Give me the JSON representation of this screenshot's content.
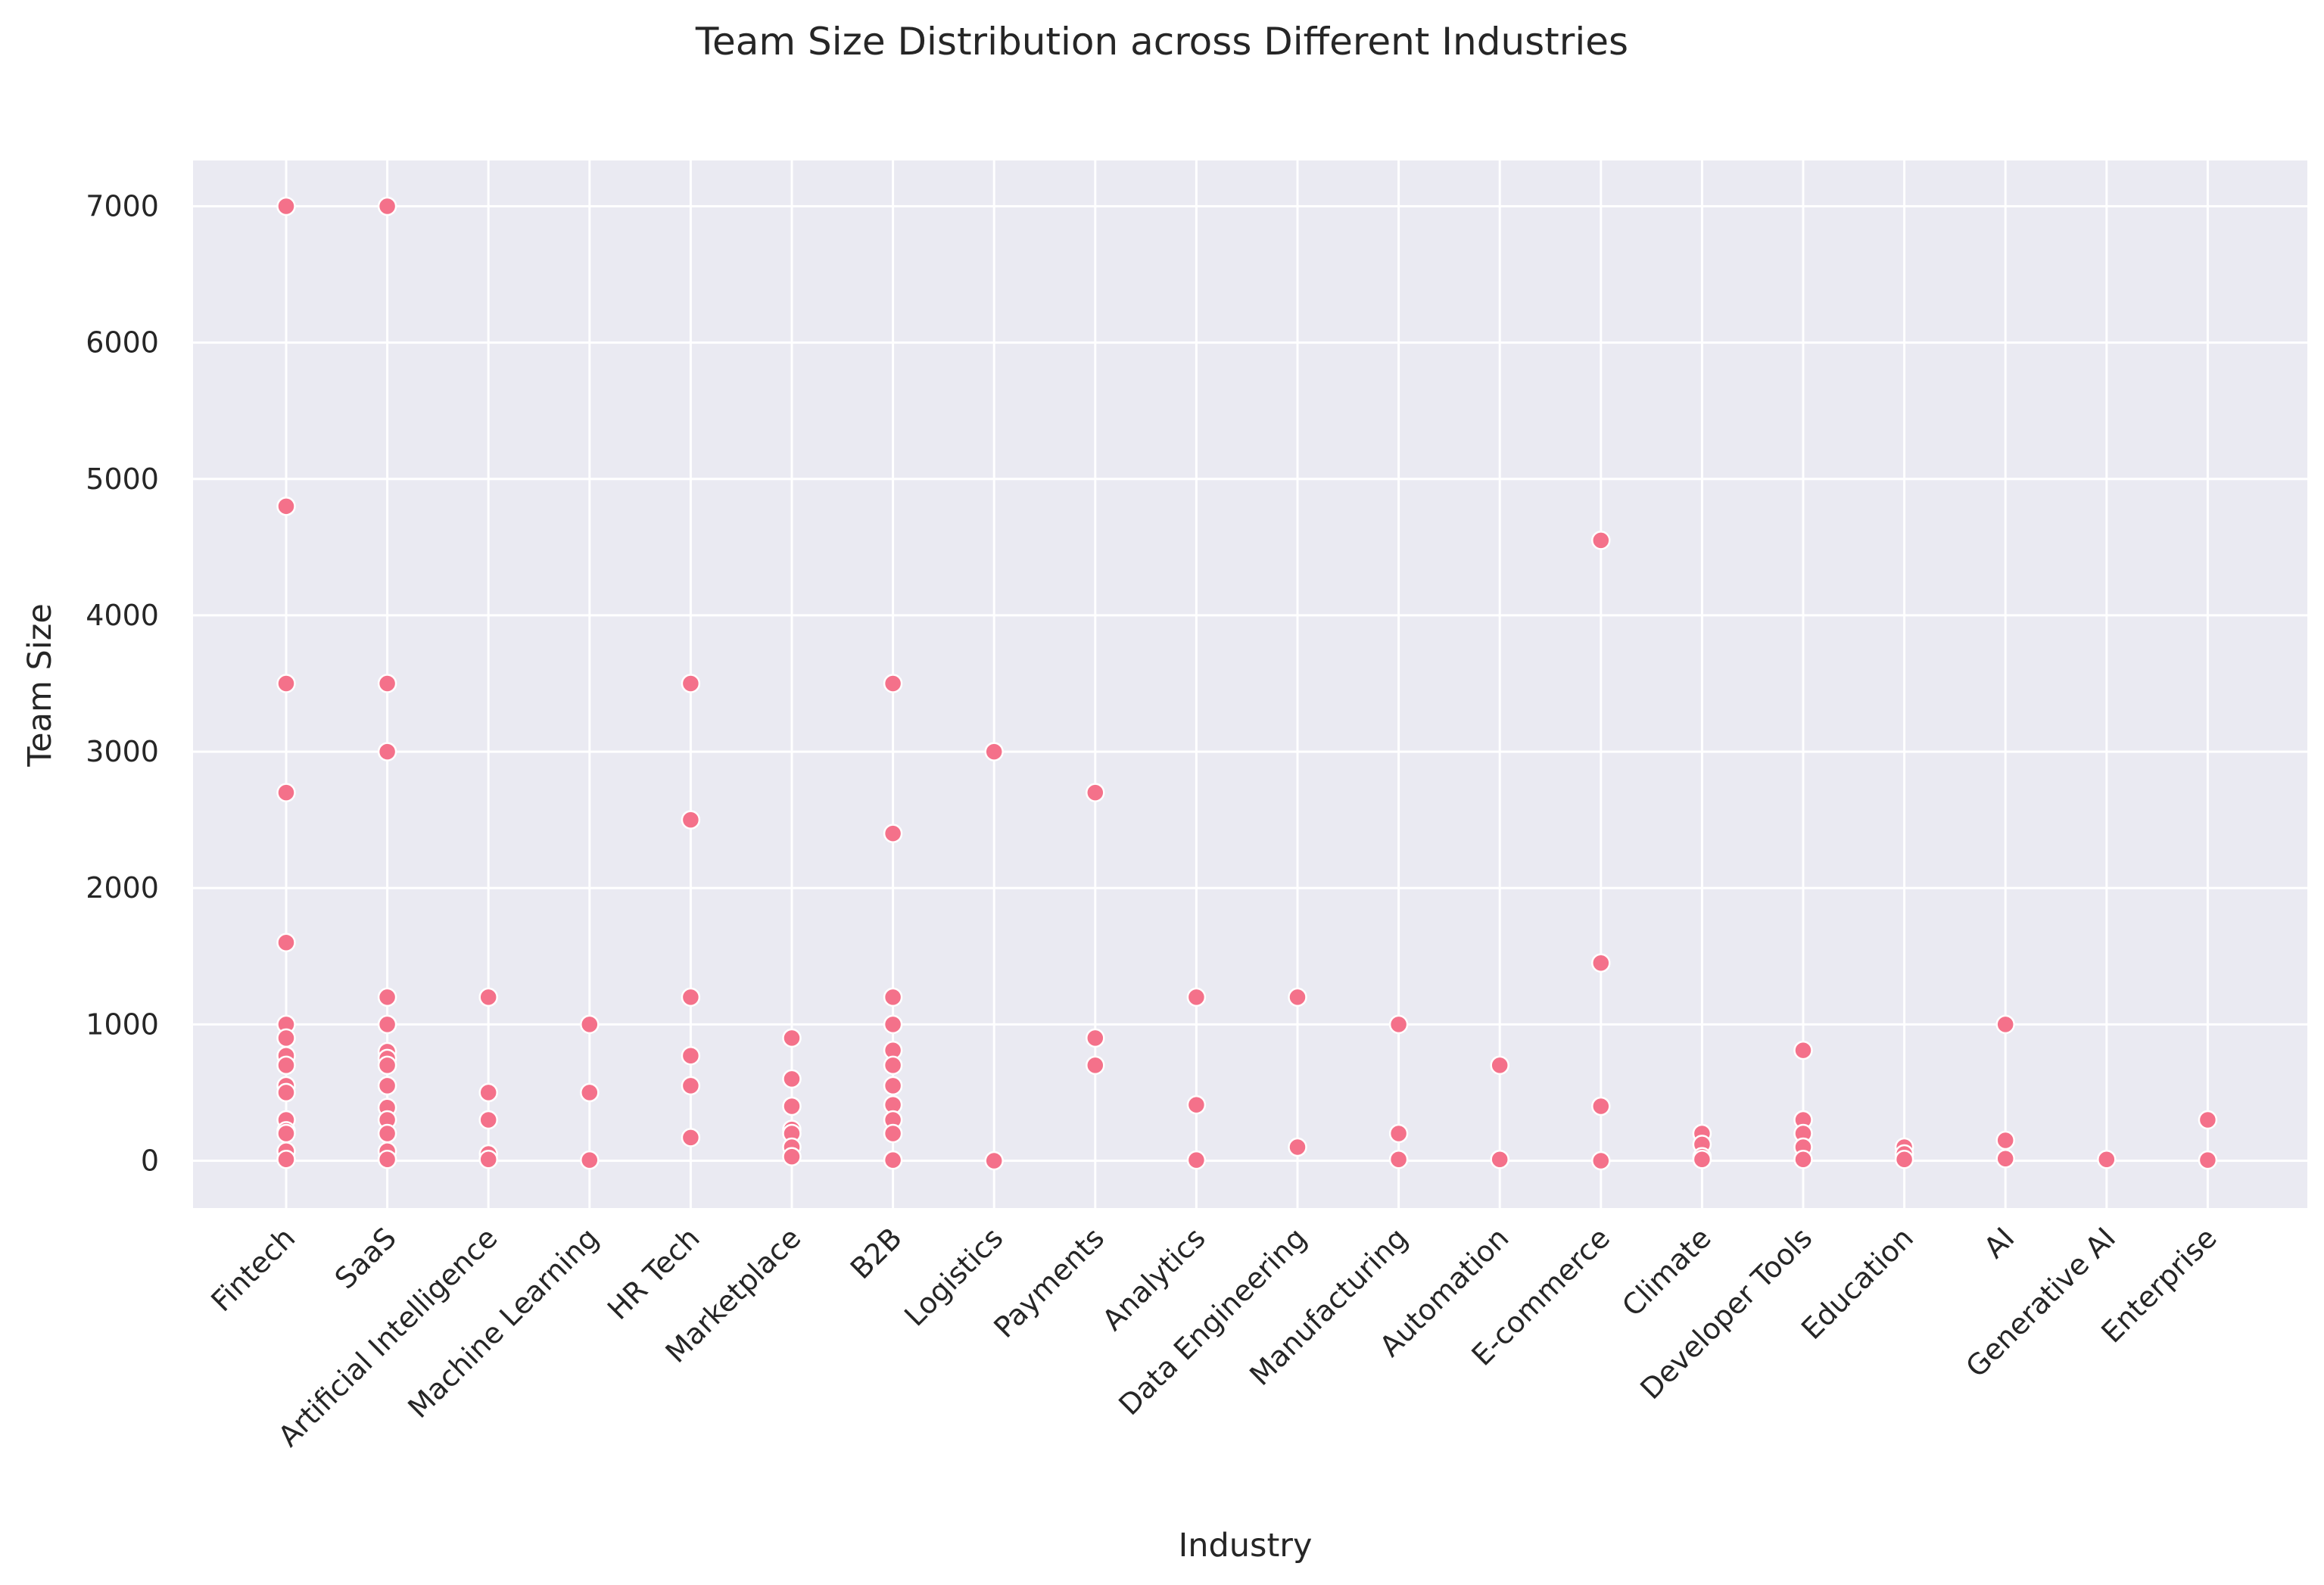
{
  "chart_data": {
    "type": "scatter",
    "title": "Team Size Distribution across Different Industries",
    "xlabel": "Industry",
    "ylabel": "Team Size",
    "ylim": [
      -350,
      7350
    ],
    "yticks": [
      0,
      1000,
      2000,
      3000,
      4000,
      5000,
      6000,
      7000
    ],
    "grid": true,
    "legend": "none",
    "colors": {
      "point": "#f4718a",
      "background": "#eaeaf2",
      "grid": "#ffffff",
      "text": "#262626"
    },
    "categories": [
      "Fintech",
      "SaaS",
      "Artificial Intelligence",
      "Machine Learning",
      "HR Tech",
      "Marketplace",
      "B2B",
      "Logistics",
      "Payments",
      "Analytics",
      "Data Engineering",
      "Manufacturing",
      "Automation",
      "E-commerce",
      "Climate",
      "Developer Tools",
      "Education",
      "AI",
      "Generative AI",
      "Enterprise"
    ],
    "points": [
      {
        "x": "Fintech",
        "y": 7000
      },
      {
        "x": "Fintech",
        "y": 4800
      },
      {
        "x": "Fintech",
        "y": 3500
      },
      {
        "x": "Fintech",
        "y": 2700
      },
      {
        "x": "Fintech",
        "y": 1600
      },
      {
        "x": "Fintech",
        "y": 1000
      },
      {
        "x": "Fintech",
        "y": 900
      },
      {
        "x": "Fintech",
        "y": 770
      },
      {
        "x": "Fintech",
        "y": 700
      },
      {
        "x": "Fintech",
        "y": 550
      },
      {
        "x": "Fintech",
        "y": 500
      },
      {
        "x": "Fintech",
        "y": 300
      },
      {
        "x": "Fintech",
        "y": 220
      },
      {
        "x": "Fintech",
        "y": 200
      },
      {
        "x": "Fintech",
        "y": 70
      },
      {
        "x": "Fintech",
        "y": 10
      },
      {
        "x": "SaaS",
        "y": 7000
      },
      {
        "x": "SaaS",
        "y": 3500
      },
      {
        "x": "SaaS",
        "y": 3000
      },
      {
        "x": "SaaS",
        "y": 1200
      },
      {
        "x": "SaaS",
        "y": 1000
      },
      {
        "x": "SaaS",
        "y": 800
      },
      {
        "x": "SaaS",
        "y": 750
      },
      {
        "x": "SaaS",
        "y": 700
      },
      {
        "x": "SaaS",
        "y": 550
      },
      {
        "x": "SaaS",
        "y": 390
      },
      {
        "x": "SaaS",
        "y": 300
      },
      {
        "x": "SaaS",
        "y": 200
      },
      {
        "x": "SaaS",
        "y": 70
      },
      {
        "x": "SaaS",
        "y": 10
      },
      {
        "x": "Artificial Intelligence",
        "y": 1200
      },
      {
        "x": "Artificial Intelligence",
        "y": 500
      },
      {
        "x": "Artificial Intelligence",
        "y": 300
      },
      {
        "x": "Artificial Intelligence",
        "y": 50
      },
      {
        "x": "Artificial Intelligence",
        "y": 10
      },
      {
        "x": "Machine Learning",
        "y": 1000
      },
      {
        "x": "Machine Learning",
        "y": 500
      },
      {
        "x": "Machine Learning",
        "y": 5
      },
      {
        "x": "HR Tech",
        "y": 3500
      },
      {
        "x": "HR Tech",
        "y": 2500
      },
      {
        "x": "HR Tech",
        "y": 1200
      },
      {
        "x": "HR Tech",
        "y": 770
      },
      {
        "x": "HR Tech",
        "y": 550
      },
      {
        "x": "HR Tech",
        "y": 170
      },
      {
        "x": "Marketplace",
        "y": 900
      },
      {
        "x": "Marketplace",
        "y": 600
      },
      {
        "x": "Marketplace",
        "y": 400
      },
      {
        "x": "Marketplace",
        "y": 230
      },
      {
        "x": "Marketplace",
        "y": 200
      },
      {
        "x": "Marketplace",
        "y": 100
      },
      {
        "x": "Marketplace",
        "y": 30
      },
      {
        "x": "B2B",
        "y": 3500
      },
      {
        "x": "B2B",
        "y": 2400
      },
      {
        "x": "B2B",
        "y": 1200
      },
      {
        "x": "B2B",
        "y": 1000
      },
      {
        "x": "B2B",
        "y": 810
      },
      {
        "x": "B2B",
        "y": 700
      },
      {
        "x": "B2B",
        "y": 550
      },
      {
        "x": "B2B",
        "y": 410
      },
      {
        "x": "B2B",
        "y": 300
      },
      {
        "x": "B2B",
        "y": 200
      },
      {
        "x": "B2B",
        "y": 5
      },
      {
        "x": "Logistics",
        "y": 3000
      },
      {
        "x": "Logistics",
        "y": 0
      },
      {
        "x": "Payments",
        "y": 2700
      },
      {
        "x": "Payments",
        "y": 900
      },
      {
        "x": "Payments",
        "y": 700
      },
      {
        "x": "Analytics",
        "y": 1200
      },
      {
        "x": "Analytics",
        "y": 410
      },
      {
        "x": "Analytics",
        "y": 5
      },
      {
        "x": "Data Engineering",
        "y": 1200
      },
      {
        "x": "Data Engineering",
        "y": 100
      },
      {
        "x": "Manufacturing",
        "y": 1000
      },
      {
        "x": "Manufacturing",
        "y": 200
      },
      {
        "x": "Manufacturing",
        "y": 10
      },
      {
        "x": "Automation",
        "y": 700
      },
      {
        "x": "Automation",
        "y": 10
      },
      {
        "x": "E-commerce",
        "y": 4550
      },
      {
        "x": "E-commerce",
        "y": 1450
      },
      {
        "x": "E-commerce",
        "y": 400
      },
      {
        "x": "E-commerce",
        "y": 0
      },
      {
        "x": "Climate",
        "y": 200
      },
      {
        "x": "Climate",
        "y": 120
      },
      {
        "x": "Climate",
        "y": 30
      },
      {
        "x": "Climate",
        "y": 10
      },
      {
        "x": "Developer Tools",
        "y": 810
      },
      {
        "x": "Developer Tools",
        "y": 300
      },
      {
        "x": "Developer Tools",
        "y": 200
      },
      {
        "x": "Developer Tools",
        "y": 100
      },
      {
        "x": "Developer Tools",
        "y": 10
      },
      {
        "x": "Education",
        "y": 100
      },
      {
        "x": "Education",
        "y": 50
      },
      {
        "x": "Education",
        "y": 10
      },
      {
        "x": "AI",
        "y": 1000
      },
      {
        "x": "AI",
        "y": 150
      },
      {
        "x": "AI",
        "y": 15
      },
      {
        "x": "Generative AI",
        "y": 10
      },
      {
        "x": "Enterprise",
        "y": 300
      },
      {
        "x": "Enterprise",
        "y": 5
      }
    ]
  }
}
